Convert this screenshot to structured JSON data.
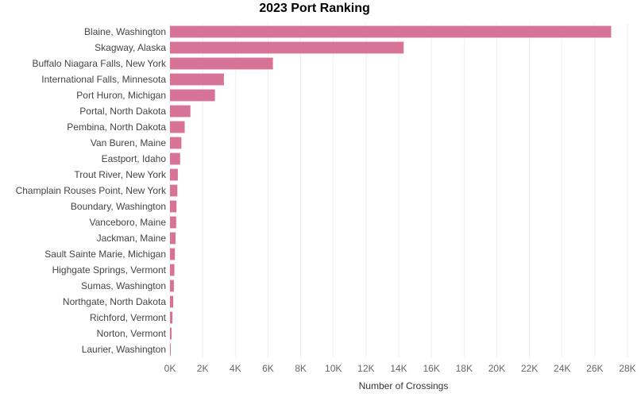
{
  "chart_data": {
    "type": "bar",
    "orientation": "horizontal",
    "title": "2023 Port Ranking",
    "xlabel": "Number of Crossings",
    "ylabel": "",
    "categories": [
      "Blaine, Washington",
      "Skagway, Alaska",
      "Buffalo Niagara Falls, New York",
      "International Falls, Minnesota",
      "Port Huron, Michigan",
      "Portal, North Dakota",
      "Pembina, North Dakota",
      "Van Buren, Maine",
      "Eastport, Idaho",
      "Trout River, New York",
      "Champlain Rouses Point, New York",
      "Boundary, Washington",
      "Vanceboro, Maine",
      "Jackman, Maine",
      "Sault Sainte Marie, Michigan",
      "Highgate Springs, Vermont",
      "Sumas, Washington",
      "Northgate, North Dakota",
      "Richford, Vermont",
      "Norton, Vermont",
      "Laurier, Washington"
    ],
    "values": [
      27000,
      14300,
      6300,
      3300,
      2750,
      1250,
      900,
      700,
      620,
      480,
      450,
      400,
      380,
      340,
      300,
      270,
      240,
      200,
      150,
      100,
      30
    ],
    "xlim": [
      0,
      28000
    ],
    "xticks": [
      0,
      2000,
      4000,
      6000,
      8000,
      10000,
      12000,
      14000,
      16000,
      18000,
      20000,
      22000,
      24000,
      26000,
      28000
    ],
    "xtick_labels": [
      "0K",
      "2K",
      "4K",
      "6K",
      "8K",
      "10K",
      "12K",
      "14K",
      "16K",
      "18K",
      "20K",
      "22K",
      "24K",
      "26K",
      "28K"
    ],
    "bar_color": "#d67396",
    "grid": true,
    "legend": "none"
  }
}
